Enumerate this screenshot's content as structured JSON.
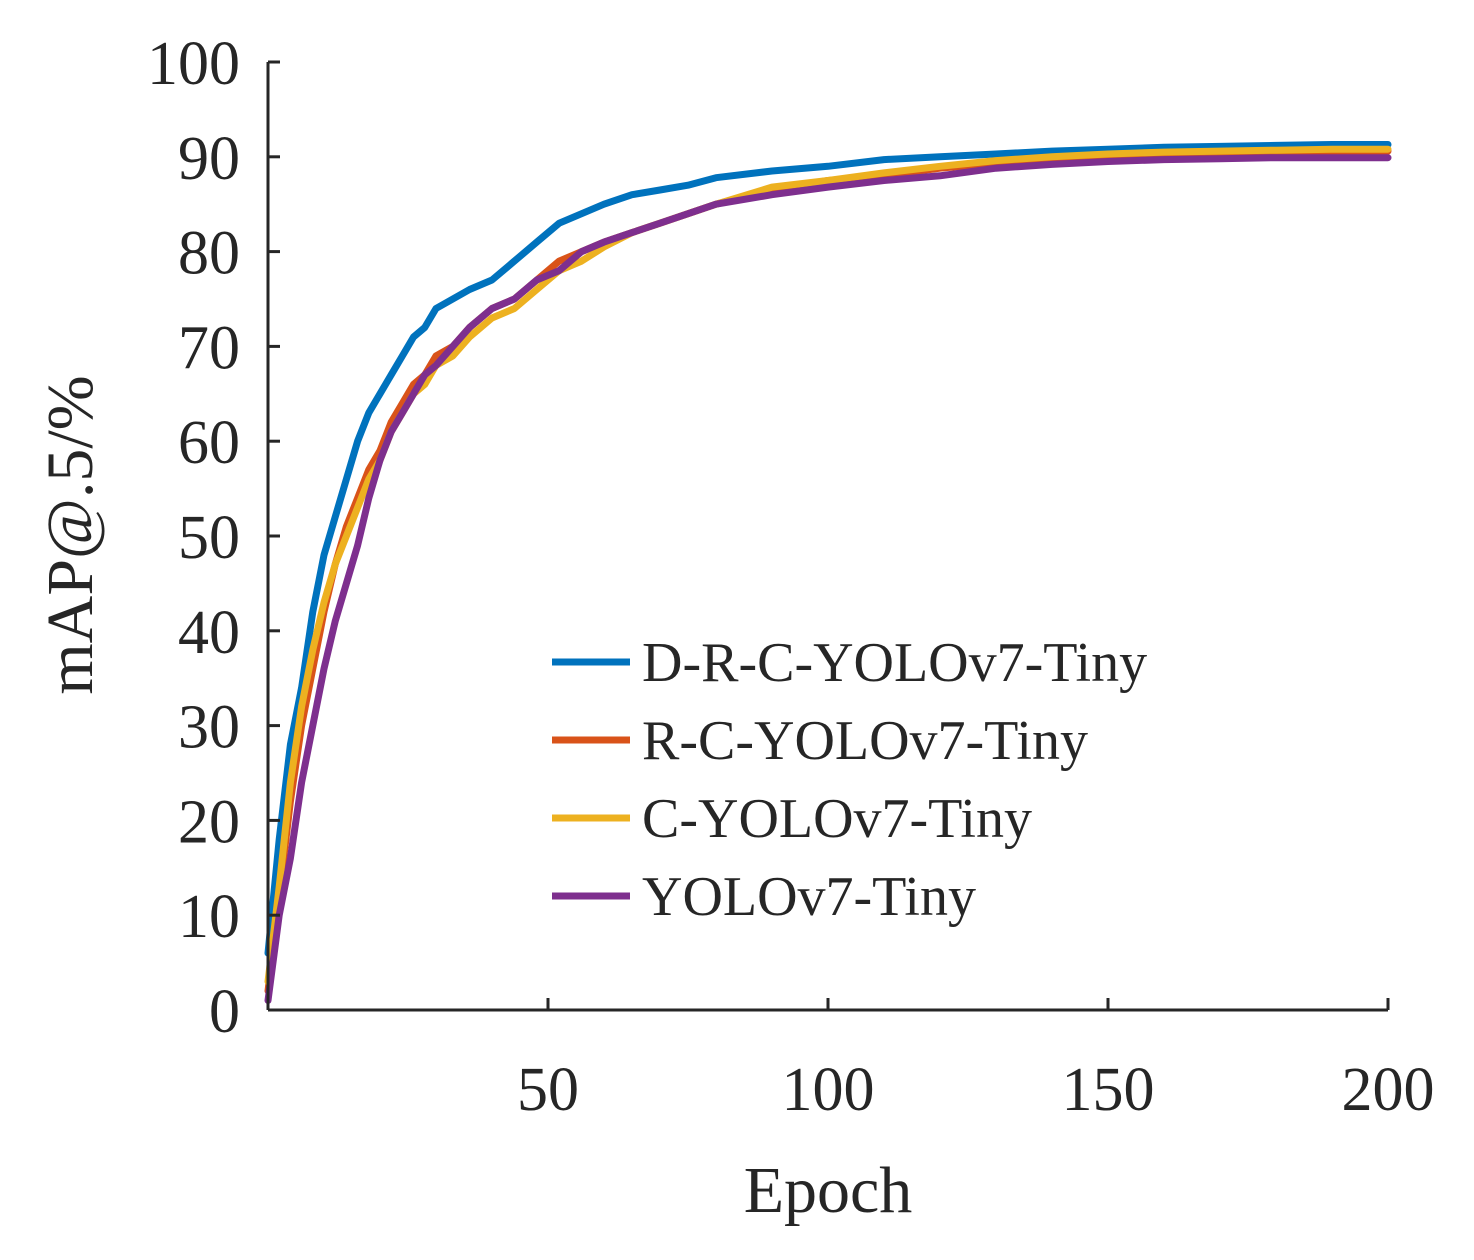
{
  "chart_data": {
    "type": "line",
    "title": "",
    "xlabel": "Epoch",
    "ylabel": "mAP@.5/%",
    "xlim": [
      0,
      200
    ],
    "ylim": [
      0,
      100
    ],
    "xticks": [
      50,
      100,
      150,
      200
    ],
    "yticks": [
      0,
      10,
      20,
      30,
      40,
      50,
      60,
      70,
      80,
      90,
      100
    ],
    "grid": false,
    "legend_position": "bottom-right",
    "x": [
      0,
      2,
      4,
      6,
      8,
      10,
      12,
      14,
      16,
      18,
      20,
      22,
      24,
      26,
      28,
      30,
      33,
      36,
      40,
      44,
      48,
      52,
      56,
      60,
      65,
      70,
      75,
      80,
      90,
      100,
      110,
      120,
      130,
      140,
      150,
      160,
      170,
      180,
      190,
      200
    ],
    "series": [
      {
        "name": "D-R-C-YOLOv7-Tiny",
        "color": "#0072BD",
        "values": [
          6,
          18,
          28,
          34,
          42,
          48,
          52,
          56,
          60,
          63,
          65,
          67,
          69,
          71,
          72,
          74,
          75,
          76,
          77,
          79,
          81,
          83,
          84,
          85,
          86,
          86.5,
          87,
          87.8,
          88.5,
          89,
          89.7,
          90,
          90.3,
          90.6,
          90.8,
          91,
          91.1,
          91.2,
          91.3,
          91.3
        ]
      },
      {
        "name": "R-C-YOLOv7-Tiny",
        "color": "#D95319",
        "values": [
          2,
          12,
          22,
          30,
          36,
          42,
          47,
          51,
          54,
          57,
          59,
          62,
          64,
          66,
          67,
          69,
          70,
          72,
          74,
          75,
          77,
          79,
          80,
          81,
          82,
          83,
          84,
          85,
          86.5,
          87.5,
          88,
          88.8,
          89.3,
          89.7,
          90,
          90.2,
          90.4,
          90.5,
          90.6,
          90.6
        ]
      },
      {
        "name": "C-YOLOv7-Tiny",
        "color": "#EDB120",
        "values": [
          3,
          13,
          24,
          32,
          38,
          43,
          47,
          50,
          53,
          56,
          58,
          61,
          63,
          65,
          66,
          68,
          69,
          71,
          73,
          74,
          76,
          78,
          79,
          80.5,
          82,
          83,
          84,
          85,
          86.8,
          87.5,
          88.3,
          89,
          89.6,
          90,
          90.3,
          90.5,
          90.6,
          90.7,
          90.8,
          90.8
        ]
      },
      {
        "name": "YOLOv7-Tiny",
        "color": "#7E2F8E",
        "values": [
          1,
          10,
          16,
          24,
          30,
          36,
          41,
          45,
          49,
          54,
          58,
          61,
          63,
          65,
          67,
          68,
          70,
          72,
          74,
          75,
          77,
          78,
          80,
          81,
          82,
          83,
          84,
          85,
          86,
          86.8,
          87.5,
          88,
          88.8,
          89.2,
          89.5,
          89.7,
          89.8,
          89.9,
          89.9,
          89.9
        ]
      }
    ]
  }
}
